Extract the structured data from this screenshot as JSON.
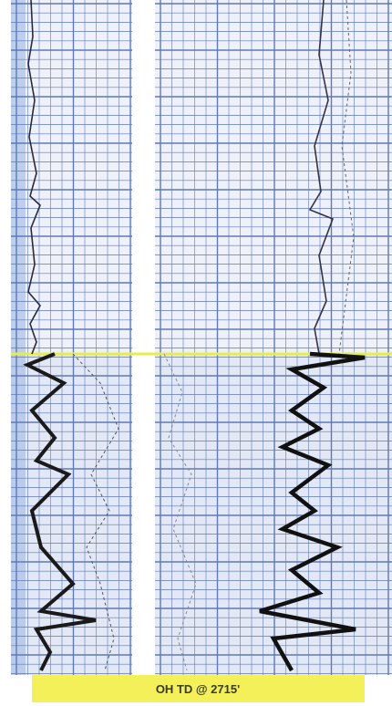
{
  "label": "OH TD @ 2715'"
}
